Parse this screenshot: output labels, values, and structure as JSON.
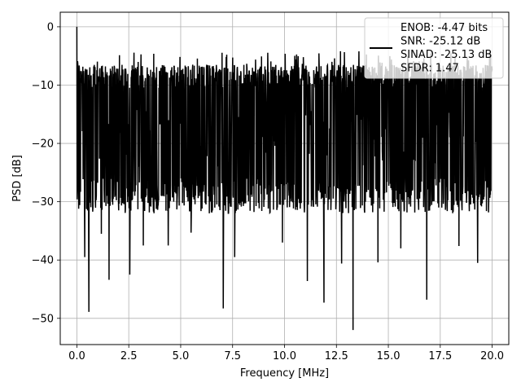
{
  "chart_data": {
    "type": "line",
    "xlabel": "Frequency [MHz]",
    "ylabel": "PSD [dB]",
    "xlim": [
      -0.8,
      20.8
    ],
    "ylim": [
      -54.5,
      2.5
    ],
    "xticks": [
      0.0,
      2.5,
      5.0,
      7.5,
      10.0,
      12.5,
      15.0,
      17.5,
      20.0
    ],
    "xtick_labels": [
      "0.0",
      "2.5",
      "5.0",
      "7.5",
      "10.0",
      "12.5",
      "15.0",
      "17.5",
      "20.0"
    ],
    "yticks": [
      0,
      -10,
      -20,
      -30,
      -40,
      -50
    ],
    "ytick_labels": [
      "0",
      "−10",
      "−20",
      "−30",
      "−40",
      "−50"
    ],
    "grid": true,
    "legend_position": "top-right",
    "line_color": "#000000",
    "legend": {
      "lines": [
        "ENOB: -4.47 bits",
        "SNR: -25.12 dB",
        "SINAD: -25.13 dB",
        "SFDR: 1.47"
      ]
    },
    "series": [
      {
        "x_start": 0.0,
        "x_end": 20.0,
        "points": 1600,
        "peak": {
          "x": 0.0,
          "y": 0.0
        },
        "envelope_top": -9,
        "envelope_bottom": -30,
        "dips": [
          {
            "x": 0.38,
            "y": -39.5
          },
          {
            "x": 0.58,
            "y": -48.9
          },
          {
            "x": 1.55,
            "y": -43.4
          },
          {
            "x": 1.18,
            "y": -35.5
          },
          {
            "x": 2.55,
            "y": -42.5
          },
          {
            "x": 3.2,
            "y": -37.5
          },
          {
            "x": 4.4,
            "y": -37.5
          },
          {
            "x": 5.5,
            "y": -35.3
          },
          {
            "x": 7.05,
            "y": -48.3
          },
          {
            "x": 7.6,
            "y": -39.5
          },
          {
            "x": 9.9,
            "y": -37.0
          },
          {
            "x": 11.1,
            "y": -43.6
          },
          {
            "x": 11.9,
            "y": -47.3
          },
          {
            "x": 12.75,
            "y": -40.6
          },
          {
            "x": 13.3,
            "y": -52.0
          },
          {
            "x": 14.5,
            "y": -40.4
          },
          {
            "x": 15.6,
            "y": -38.0
          },
          {
            "x": 16.85,
            "y": -46.8
          },
          {
            "x": 18.4,
            "y": -37.6
          },
          {
            "x": 19.3,
            "y": -40.5
          }
        ]
      }
    ]
  }
}
